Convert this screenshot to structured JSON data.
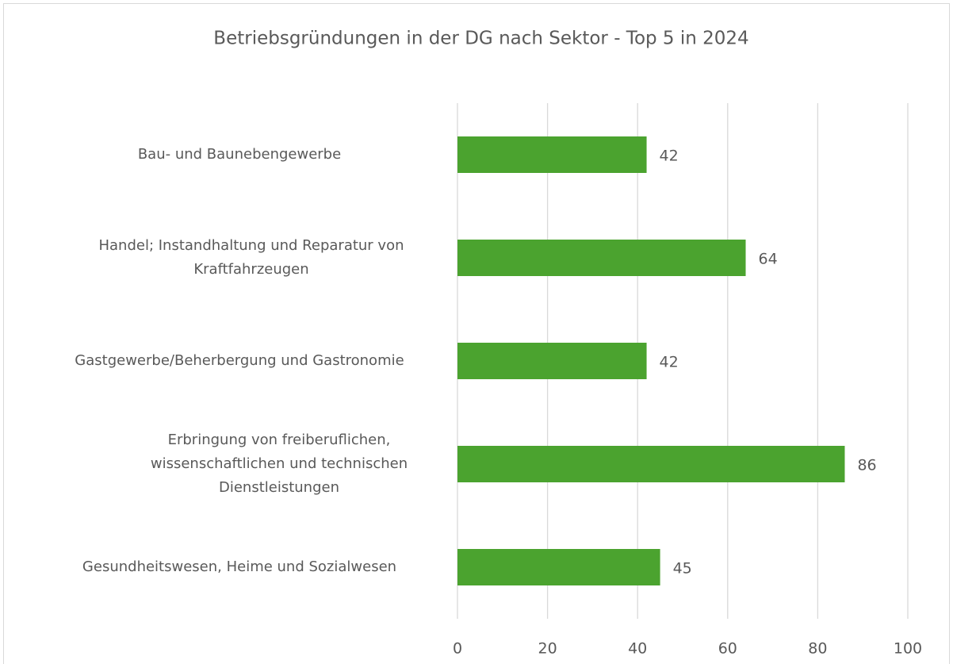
{
  "chart_data": {
    "type": "bar",
    "orientation": "horizontal",
    "title": "Betriebsgründungen in der DG nach Sektor - Top 5 in 2024",
    "categories": [
      "Bau- und Baunebengewerbe",
      "Handel; Instandhaltung und Reparatur von Kraftfahrzeugen",
      "Gastgewerbe/Beherbergung und Gastronomie",
      "Erbringung von freiberuflichen, wissenschaftlichen und technischen Dienstleistungen",
      "Gesundheitswesen, Heime und Sozialwesen"
    ],
    "values": [
      42,
      64,
      42,
      86,
      45
    ],
    "color": "#4ba32f",
    "xlim": [
      0,
      100
    ],
    "xticks": [
      0,
      20,
      40,
      60,
      80,
      100
    ],
    "grid": true
  }
}
